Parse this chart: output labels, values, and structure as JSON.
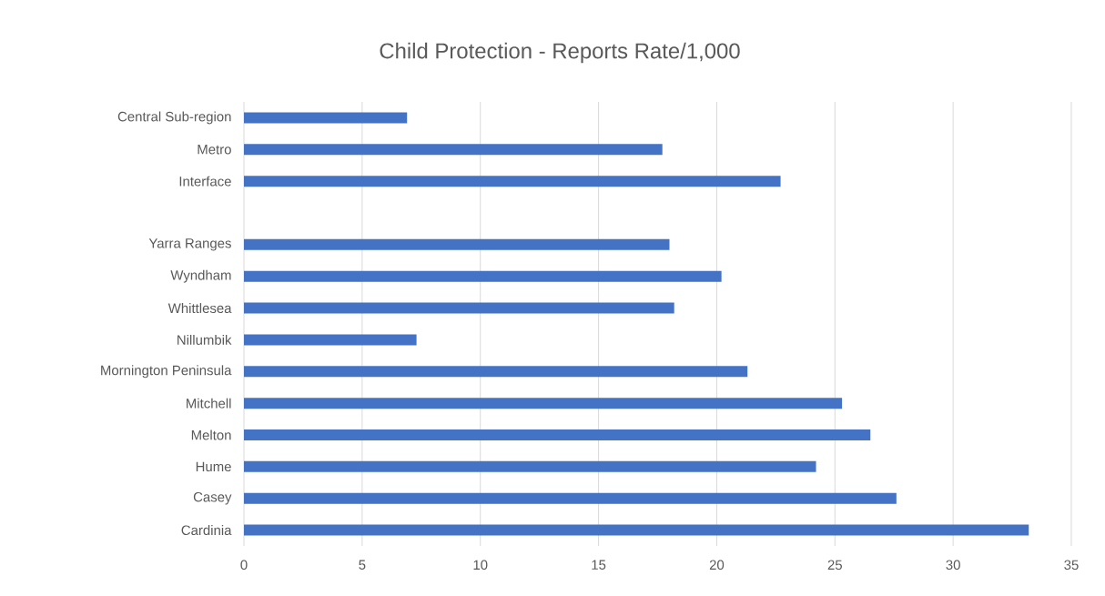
{
  "chart_data": {
    "type": "bar",
    "orientation": "horizontal",
    "title": "Child Protection - Reports Rate/1,000",
    "categories": [
      "Central Sub-region",
      "Metro",
      "Interface",
      null,
      "Yarra Ranges",
      "Wyndham",
      "Whittlesea",
      "Nillumbik",
      "Mornington Peninsula",
      "Mitchell",
      "Melton",
      "Hume",
      "Casey",
      "Cardinia"
    ],
    "values": [
      6.9,
      17.7,
      22.7,
      null,
      18.0,
      20.2,
      18.2,
      7.3,
      21.3,
      25.3,
      26.5,
      24.2,
      27.6,
      33.2
    ],
    "color": "#4472c4",
    "xlim": [
      0,
      35
    ],
    "xticks": [
      0,
      5,
      10,
      15,
      20,
      25,
      30,
      35
    ],
    "grid": "x"
  }
}
